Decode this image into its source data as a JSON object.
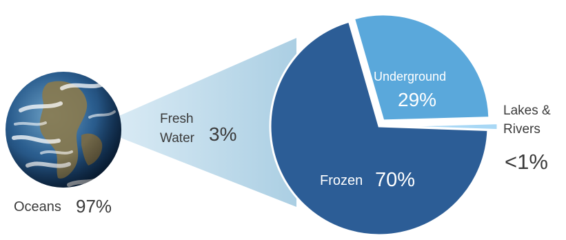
{
  "chart_data": {
    "type": "pie",
    "description_labels": {
      "oceans_label": "Oceans",
      "oceans_value": "97%",
      "fresh_label_line1": "Fresh",
      "fresh_label_line2": "Water",
      "fresh_value": "3%"
    },
    "slices": [
      {
        "label": "Frozen",
        "value_text": "70%",
        "value": 70,
        "color": "#2c5d96",
        "exploded": false
      },
      {
        "label": "Underground",
        "value_text": "29%",
        "value": 29,
        "color": "#5aa8db",
        "exploded": true
      },
      {
        "label_line1": "Lakes &",
        "label_line2": "Rivers",
        "value_text": "<1%",
        "value": 1,
        "color": "#a9d8f5",
        "exploded": true
      }
    ],
    "earth": {
      "values": [
        97,
        3
      ],
      "labels": [
        "Oceans",
        "Fresh Water"
      ]
    },
    "colors": {
      "connector": "#a8cce0",
      "ocean_blue": "#1f4f86",
      "label_text": "#3a3a3a",
      "white_text": "#ffffff"
    }
  }
}
